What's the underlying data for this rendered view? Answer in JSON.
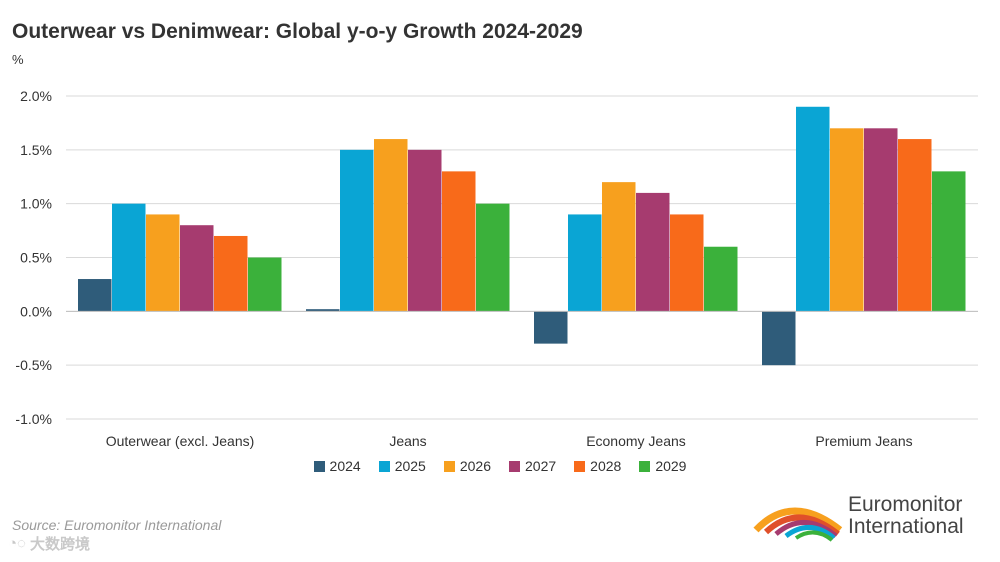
{
  "chart_data": {
    "type": "bar",
    "title": "Outerwear vs Denimwear: Global y-o-y Growth 2024-2029",
    "ylabel": "%",
    "xlabel": "",
    "categories": [
      "Outerwear (excl. Jeans)",
      "Jeans",
      "Economy Jeans",
      "Premium Jeans"
    ],
    "yticks": [
      "2.0%",
      "1.5%",
      "1.0%",
      "0.5%",
      "0.0%",
      "-0.5%",
      "-1.0%"
    ],
    "ylim": [
      -1.0,
      2.0
    ],
    "grid": true,
    "legend_position": "bottom",
    "series": [
      {
        "name": "2024",
        "color": "#2f5c7a",
        "values": [
          0.3,
          0.02,
          -0.3,
          -0.5
        ]
      },
      {
        "name": "2025",
        "color": "#0aa5d4",
        "values": [
          1.0,
          1.5,
          0.9,
          1.9
        ]
      },
      {
        "name": "2026",
        "color": "#f7a01e",
        "values": [
          0.9,
          1.6,
          1.2,
          1.7
        ]
      },
      {
        "name": "2027",
        "color": "#a63b6f",
        "values": [
          0.8,
          1.5,
          1.1,
          1.7
        ]
      },
      {
        "name": "2028",
        "color": "#f86a1a",
        "values": [
          0.7,
          1.3,
          0.9,
          1.6
        ]
      },
      {
        "name": "2029",
        "color": "#3bb13b",
        "values": [
          0.5,
          1.0,
          0.6,
          1.3
        ]
      }
    ]
  },
  "source": "Source: Euromonitor International",
  "watermark": "大数跨境",
  "logo": {
    "line1": "Euromonitor",
    "line2": "International"
  }
}
